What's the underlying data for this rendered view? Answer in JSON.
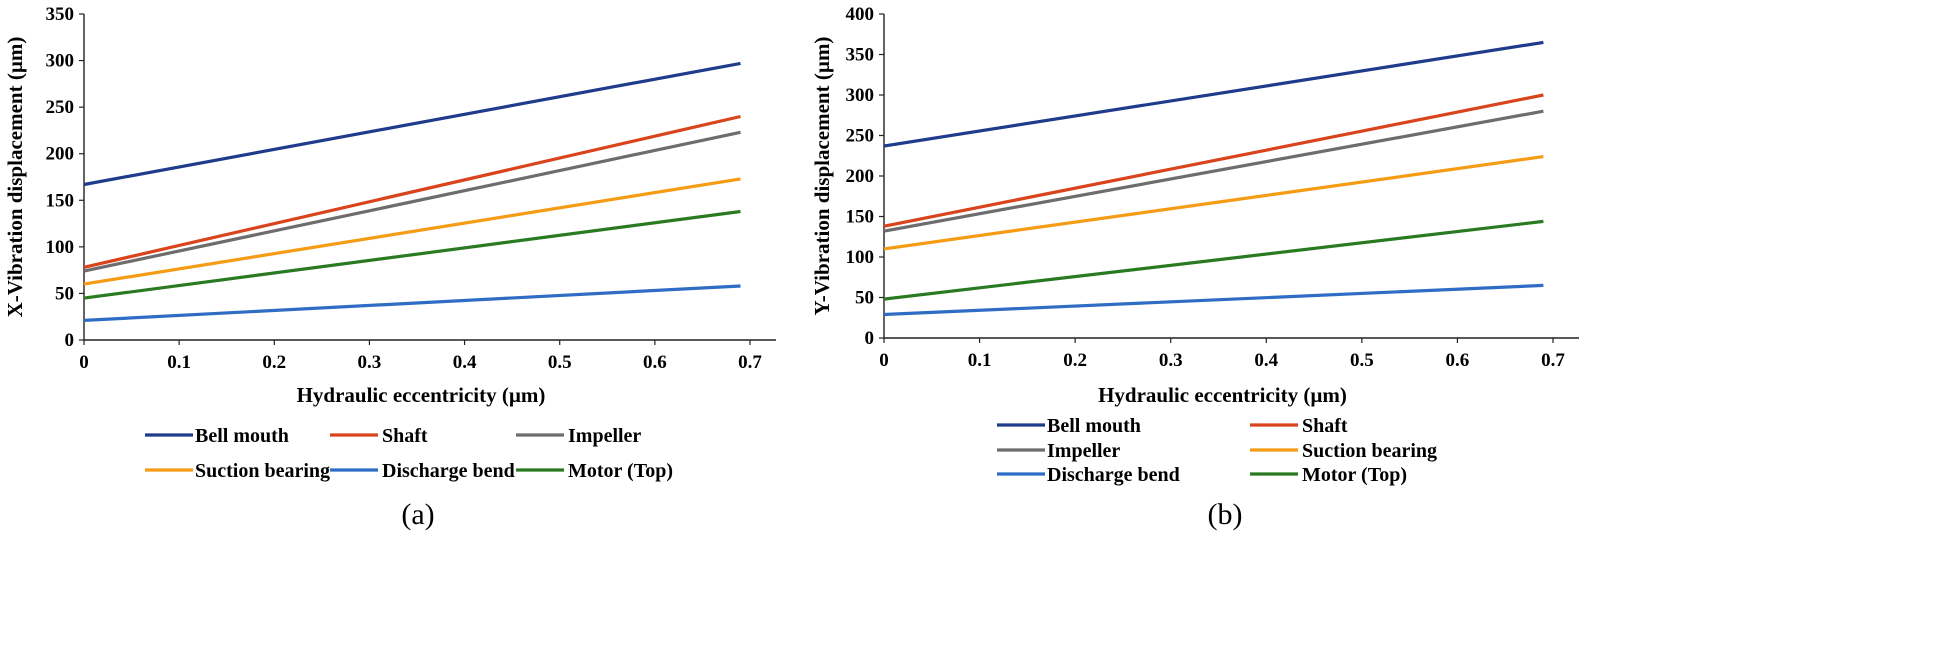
{
  "chart_data": [
    {
      "type": "line",
      "caption": "(a)",
      "xlabel": "Hydraulic eccentricity (µm)",
      "ylabel": "X-Vibration displacement (µm)",
      "xlim": [
        0,
        0.7
      ],
      "ylim": [
        0,
        350
      ],
      "xticks": [
        "0",
        "0.1",
        "0.2",
        "0.3",
        "0.4",
        "0.5",
        "0.6",
        "0.7"
      ],
      "yticks": [
        "0",
        "50",
        "100",
        "150",
        "200",
        "250",
        "300",
        "350"
      ],
      "x": [
        0,
        0.69
      ],
      "legend_position": "bottom",
      "series": [
        {
          "name": "Bell mouth",
          "color": "#1f3b8c",
          "values": [
            167,
            297
          ]
        },
        {
          "name": "Shaft",
          "color": "#d9441c",
          "values": [
            78,
            240
          ]
        },
        {
          "name": "Impeller",
          "color": "#6d6d6d",
          "values": [
            74,
            223
          ]
        },
        {
          "name": "Suction bearing",
          "color": "#f59b14",
          "values": [
            60,
            173
          ]
        },
        {
          "name": "Discharge bend",
          "color": "#2f6cc4",
          "values": [
            21,
            58
          ]
        },
        {
          "name": "Motor (Top)",
          "color": "#2a7a22",
          "values": [
            45,
            138
          ]
        }
      ]
    },
    {
      "type": "line",
      "caption": "(b)",
      "xlabel": "Hydraulic eccentricity (µm)",
      "ylabel": "Y-Vibration displacement (µm)",
      "xlim": [
        0,
        0.7
      ],
      "ylim": [
        0,
        400
      ],
      "xticks": [
        "0",
        "0.1",
        "0.2",
        "0.3",
        "0.4",
        "0.5",
        "0.6",
        "0.7"
      ],
      "yticks": [
        "0",
        "50",
        "100",
        "150",
        "200",
        "250",
        "300",
        "350",
        "400"
      ],
      "x": [
        0,
        0.69
      ],
      "legend_position": "bottom",
      "series": [
        {
          "name": "Bell mouth",
          "color": "#1f3b8c",
          "values": [
            237,
            365
          ]
        },
        {
          "name": "Shaft",
          "color": "#d9441c",
          "values": [
            138,
            300
          ]
        },
        {
          "name": "Impeller",
          "color": "#6d6d6d",
          "values": [
            132,
            280
          ]
        },
        {
          "name": "Suction bearing",
          "color": "#f59b14",
          "values": [
            110,
            224
          ]
        },
        {
          "name": "Discharge bend",
          "color": "#2f6cc4",
          "values": [
            29,
            65
          ]
        },
        {
          "name": "Motor (Top)",
          "color": "#2a7a22",
          "values": [
            48,
            144
          ]
        }
      ]
    }
  ]
}
